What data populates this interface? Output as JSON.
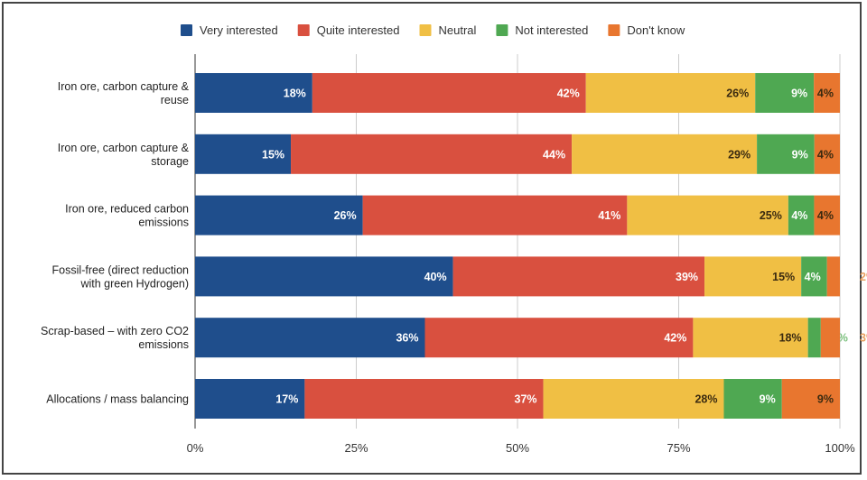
{
  "chart_data": {
    "type": "bar",
    "orientation": "horizontal",
    "stacked": "percent",
    "legend_position": "top",
    "grid": true,
    "xlim": [
      0,
      100
    ],
    "x_ticks": [
      "0%",
      "25%",
      "50%",
      "75%",
      "100%"
    ],
    "categories": [
      [
        "Iron ore, carbon capture &",
        "reuse"
      ],
      [
        "Iron ore, carbon capture &",
        "storage"
      ],
      [
        "Iron ore, reduced carbon",
        "emissions"
      ],
      [
        "Fossil-free (direct reduction",
        "with green Hydrogen)"
      ],
      [
        "Scrap-based – with zero CO2",
        "emissions"
      ],
      [
        "Allocations / mass balancing"
      ]
    ],
    "series": [
      {
        "name": "Very interested",
        "color": "#1f4e8c",
        "values": [
          18,
          15,
          26,
          40,
          36,
          17
        ]
      },
      {
        "name": "Quite interested",
        "color": "#d9503f",
        "values": [
          42,
          44,
          41,
          39,
          42,
          37
        ]
      },
      {
        "name": "Neutral",
        "color": "#f0bf44",
        "values": [
          26,
          29,
          25,
          15,
          18,
          28
        ]
      },
      {
        "name": "Not interested",
        "color": "#4fa852",
        "values": [
          9,
          9,
          4,
          4,
          2,
          9
        ]
      },
      {
        "name": "Don't know",
        "color": "#e8762f",
        "values": [
          4,
          4,
          4,
          2,
          3,
          9
        ]
      }
    ]
  }
}
